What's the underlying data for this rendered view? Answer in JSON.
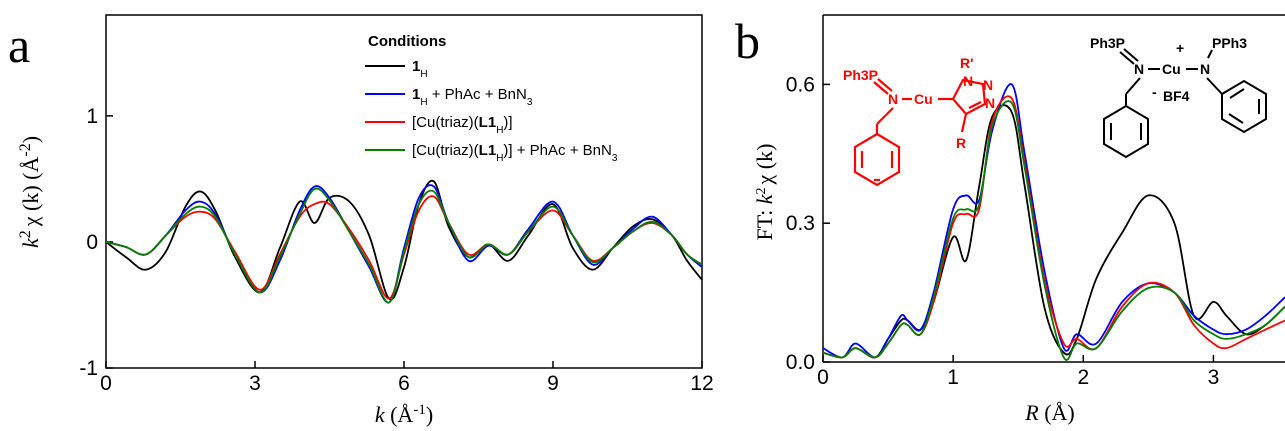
{
  "chart_data": [
    {
      "panel": "a",
      "type": "line",
      "xlabel": "k (Å^-1)",
      "ylabel": "k^2 χ (k) (Å^-2)",
      "xlim": [
        0,
        12
      ],
      "ylim": [
        -1,
        1.8
      ],
      "xticks": [
        "0",
        "3",
        "6",
        "9",
        "12"
      ],
      "yticks": [
        "-1",
        "0",
        "1"
      ],
      "legend": {
        "title": "Conditions",
        "placement": "top-right",
        "entries": [
          "1_H",
          "1_H + PhAc + BnN_3",
          "[Cu(triaz)(L1_H)]",
          "[Cu(triaz)(L1_H)] + PhAc + BnN_3"
        ]
      },
      "series": [
        {
          "name": "1_H",
          "color": "#000000",
          "x": [
            0,
            0.4,
            0.8,
            1.2,
            1.6,
            1.9,
            2.2,
            2.6,
            3.1,
            3.5,
            3.9,
            4.2,
            4.5,
            4.9,
            5.3,
            5.7,
            6.0,
            6.3,
            6.6,
            6.9,
            7.3,
            7.7,
            8.1,
            8.5,
            9.0,
            9.4,
            9.8,
            10.2,
            10.6,
            11.0,
            11.4,
            11.7,
            12.0
          ],
          "y": [
            0,
            -0.12,
            -0.22,
            -0.08,
            0.28,
            0.4,
            0.25,
            -0.12,
            -0.4,
            -0.05,
            0.32,
            0.15,
            0.35,
            0.32,
            0.05,
            -0.45,
            -0.2,
            0.3,
            0.48,
            0.12,
            -0.12,
            -0.02,
            -0.15,
            0.05,
            0.3,
            -0.05,
            -0.22,
            -0.05,
            0.12,
            0.18,
            0.05,
            -0.15,
            -0.3
          ]
        },
        {
          "name": "1_H + PhAc + BnN_3",
          "color": "#0000ff",
          "x": [
            0,
            0.4,
            0.8,
            1.2,
            1.6,
            1.9,
            2.2,
            2.6,
            3.1,
            3.5,
            3.9,
            4.2,
            4.5,
            4.9,
            5.3,
            5.7,
            6.0,
            6.3,
            6.6,
            6.9,
            7.3,
            7.7,
            8.1,
            8.5,
            9.0,
            9.4,
            9.8,
            10.2,
            10.6,
            11.0,
            11.4,
            11.7,
            12.0
          ],
          "y": [
            0,
            -0.04,
            -0.1,
            0.05,
            0.25,
            0.32,
            0.22,
            -0.1,
            -0.4,
            -0.15,
            0.25,
            0.44,
            0.35,
            0.08,
            -0.2,
            -0.48,
            -0.05,
            0.35,
            0.44,
            0.15,
            -0.15,
            -0.03,
            -0.1,
            0.1,
            0.32,
            0.05,
            -0.18,
            -0.05,
            0.1,
            0.2,
            0.05,
            -0.1,
            -0.2
          ]
        },
        {
          "name": "[Cu(triaz)(L1_H)]",
          "color": "#ff0000",
          "x": [
            0,
            0.4,
            0.8,
            1.2,
            1.6,
            1.9,
            2.2,
            2.6,
            3.1,
            3.5,
            3.9,
            4.2,
            4.5,
            4.9,
            5.3,
            5.7,
            6.0,
            6.3,
            6.6,
            6.9,
            7.3,
            7.7,
            8.1,
            8.5,
            9.0,
            9.4,
            9.8,
            10.2,
            10.6,
            11.0,
            11.4,
            11.7,
            12.0
          ],
          "y": [
            0,
            -0.04,
            -0.1,
            0.05,
            0.2,
            0.24,
            0.18,
            -0.08,
            -0.38,
            -0.1,
            0.2,
            0.3,
            0.3,
            0.1,
            -0.15,
            -0.45,
            -0.1,
            0.25,
            0.36,
            0.15,
            -0.1,
            -0.02,
            -0.1,
            0.08,
            0.25,
            0.05,
            -0.15,
            -0.05,
            0.08,
            0.15,
            0.05,
            -0.1,
            -0.18
          ]
        },
        {
          "name": "[Cu(triaz)(L1_H)] + PhAc + BnN_3",
          "color": "#008000",
          "x": [
            0,
            0.4,
            0.8,
            1.2,
            1.6,
            1.9,
            2.2,
            2.6,
            3.1,
            3.5,
            3.9,
            4.2,
            4.5,
            4.9,
            5.3,
            5.7,
            6.0,
            6.3,
            6.6,
            6.9,
            7.3,
            7.7,
            8.1,
            8.5,
            9.0,
            9.4,
            9.8,
            10.2,
            10.6,
            11.0,
            11.4,
            11.7,
            12.0
          ],
          "y": [
            0,
            -0.04,
            -0.1,
            0.05,
            0.22,
            0.28,
            0.2,
            -0.1,
            -0.4,
            -0.12,
            0.22,
            0.42,
            0.33,
            0.08,
            -0.18,
            -0.48,
            -0.08,
            0.3,
            0.4,
            0.15,
            -0.12,
            -0.02,
            -0.1,
            0.08,
            0.28,
            0.05,
            -0.16,
            -0.05,
            0.08,
            0.16,
            0.05,
            -0.1,
            -0.18
          ]
        }
      ]
    },
    {
      "panel": "b",
      "type": "line",
      "xlabel": "R (Å)",
      "ylabel": "FT: k^2 χ (k)",
      "xlim": [
        0,
        3.55
      ],
      "ylim": [
        0,
        0.75
      ],
      "xticks": [
        "0",
        "1",
        "2",
        "3"
      ],
      "yticks": [
        "0.0",
        "0.3",
        "0.6"
      ],
      "series": [
        {
          "name": "1_H",
          "color": "#000000",
          "x": [
            0,
            0.15,
            0.25,
            0.4,
            0.5,
            0.6,
            0.65,
            0.75,
            0.85,
            1.0,
            1.1,
            1.2,
            1.3,
            1.45,
            1.55,
            1.7,
            1.85,
            1.95,
            2.1,
            2.3,
            2.5,
            2.7,
            2.85,
            3.0,
            3.1,
            3.25,
            3.4,
            3.55
          ],
          "y": [
            0.02,
            0.01,
            0.03,
            0.01,
            0.05,
            0.09,
            0.09,
            0.07,
            0.13,
            0.27,
            0.22,
            0.38,
            0.53,
            0.54,
            0.38,
            0.12,
            0.02,
            0.05,
            0.18,
            0.28,
            0.36,
            0.3,
            0.1,
            0.13,
            0.1,
            0.06,
            0.08,
            0.12
          ]
        },
        {
          "name": "1_H + PhAc + BnN_3",
          "color": "#0000ff",
          "x": [
            0,
            0.15,
            0.25,
            0.4,
            0.5,
            0.6,
            0.65,
            0.75,
            0.85,
            1.0,
            1.1,
            1.2,
            1.3,
            1.45,
            1.55,
            1.7,
            1.85,
            1.95,
            2.1,
            2.3,
            2.5,
            2.7,
            2.85,
            3.0,
            3.1,
            3.25,
            3.4,
            3.55
          ],
          "y": [
            0.03,
            0.01,
            0.04,
            0.01,
            0.05,
            0.1,
            0.09,
            0.07,
            0.15,
            0.33,
            0.36,
            0.35,
            0.5,
            0.6,
            0.45,
            0.2,
            0.03,
            0.06,
            0.04,
            0.13,
            0.17,
            0.15,
            0.1,
            0.07,
            0.06,
            0.07,
            0.1,
            0.14
          ]
        },
        {
          "name": "[Cu(triaz)(L1_H)]",
          "color": "#ff0000",
          "x": [
            0,
            0.15,
            0.25,
            0.4,
            0.5,
            0.6,
            0.65,
            0.75,
            0.85,
            1.0,
            1.1,
            1.2,
            1.3,
            1.45,
            1.55,
            1.7,
            1.85,
            1.95,
            2.1,
            2.3,
            2.5,
            2.7,
            2.85,
            3.0,
            3.1,
            3.25,
            3.4,
            3.55
          ],
          "y": [
            0.02,
            0.01,
            0.03,
            0.01,
            0.04,
            0.08,
            0.08,
            0.06,
            0.13,
            0.3,
            0.32,
            0.33,
            0.52,
            0.57,
            0.43,
            0.18,
            0.04,
            0.05,
            0.03,
            0.12,
            0.17,
            0.15,
            0.08,
            0.04,
            0.03,
            0.05,
            0.07,
            0.09
          ]
        },
        {
          "name": "[Cu(triaz)(L1_H)] + PhAc + BnN_3",
          "color": "#008000",
          "x": [
            0,
            0.15,
            0.25,
            0.4,
            0.5,
            0.6,
            0.65,
            0.75,
            0.85,
            1.0,
            1.1,
            1.2,
            1.3,
            1.45,
            1.55,
            1.7,
            1.85,
            1.95,
            2.1,
            2.3,
            2.5,
            2.7,
            2.85,
            3.0,
            3.1,
            3.25,
            3.4,
            3.55
          ],
          "y": [
            0.02,
            0.01,
            0.03,
            0.01,
            0.04,
            0.08,
            0.08,
            0.06,
            0.14,
            0.31,
            0.33,
            0.34,
            0.51,
            0.56,
            0.42,
            0.17,
            0.01,
            0.04,
            0.03,
            0.11,
            0.16,
            0.15,
            0.09,
            0.06,
            0.05,
            0.06,
            0.08,
            0.12
          ]
        }
      ]
    }
  ],
  "panel_labels": [
    "a",
    "b"
  ],
  "structures": {
    "left": {
      "color": "#ff0000",
      "labels": [
        "Ph3P",
        "N",
        "Cu",
        "N",
        "N",
        "N",
        "R'",
        "R"
      ]
    },
    "right": {
      "color": "#000000",
      "labels": [
        "Ph3P",
        "N",
        "Cu",
        "+",
        "N",
        "PPh3",
        "-",
        "BF4"
      ]
    }
  }
}
